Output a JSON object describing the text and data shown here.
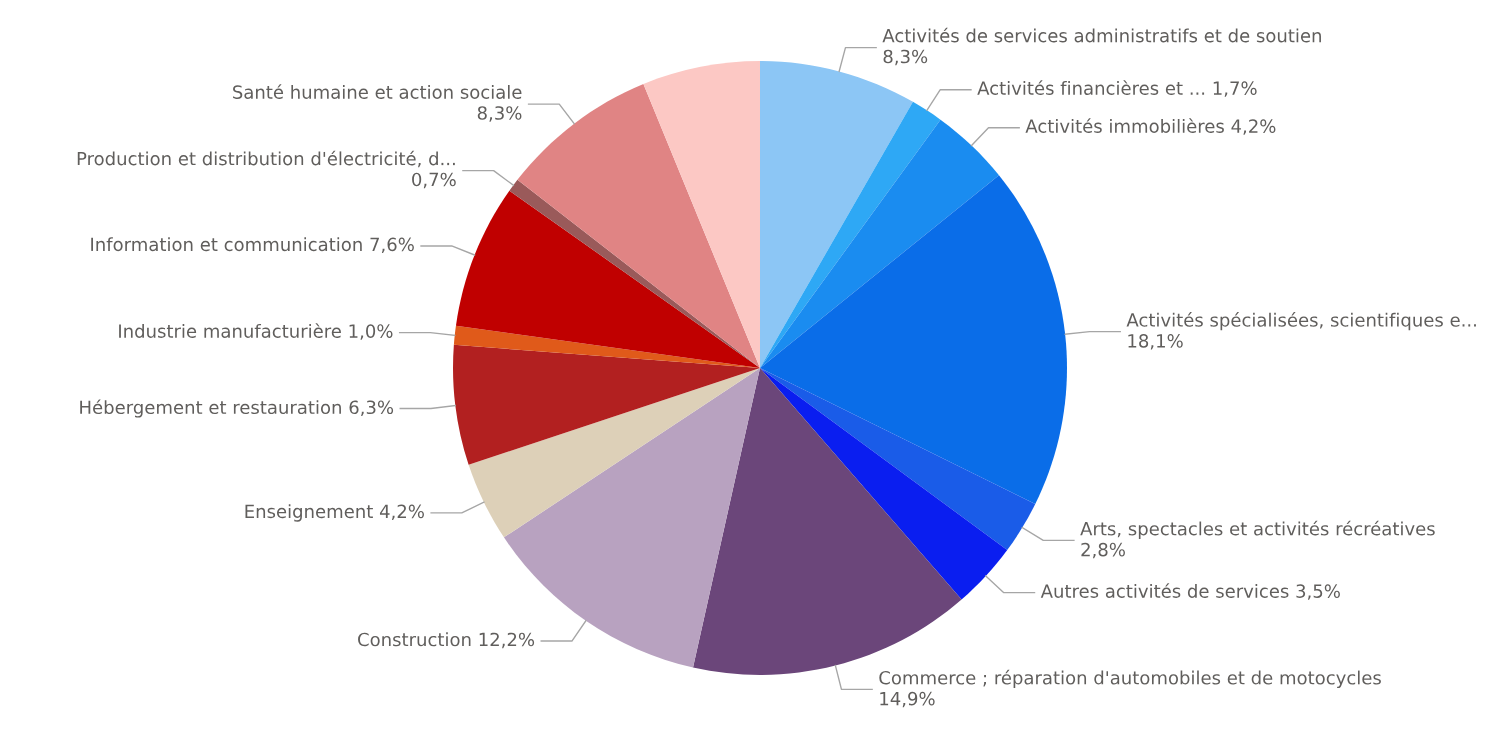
{
  "chart_data": {
    "type": "pie",
    "categories": [
      "Activités de services administratifs et de soutien",
      "Activités financières et ...",
      "Activités immobilières",
      "Activités spécialisées, scientifiques e...",
      "Arts, spectacles et activités récréatives",
      "Autres activités de services",
      "Commerce ; réparation d'automobiles et de motocycles",
      "Construction",
      "Enseignement",
      "Hébergement et restauration",
      "Industrie manufacturière",
      "Information et communication",
      "Production et distribution d'électricité, d...",
      "Santé humaine et action sociale",
      null
    ],
    "values": [
      8.3,
      1.7,
      4.2,
      18.1,
      2.8,
      3.5,
      14.9,
      12.2,
      4.2,
      6.3,
      1.0,
      7.6,
      0.7,
      8.3,
      6.2
    ],
    "value_labels": [
      "8,3%",
      "1,7%",
      "4,2%",
      "18,1%",
      "2,8%",
      "3,5%",
      "14,9%",
      "12,2%",
      "4,2%",
      "6,3%",
      "1,0%",
      "7,6%",
      "0,7%",
      "8,3%",
      null
    ],
    "colors": [
      "#8cc6f5",
      "#2ea8f5",
      "#1a8cf0",
      "#0a6de8",
      "#1a5ce8",
      "#0a1ef0",
      "#6b467a",
      "#b8a2c0",
      "#ddd0b8",
      "#b22020",
      "#e05a1a",
      "#c00000",
      "#9a5a5a",
      "#e08484",
      "#fcc8c4"
    ]
  }
}
